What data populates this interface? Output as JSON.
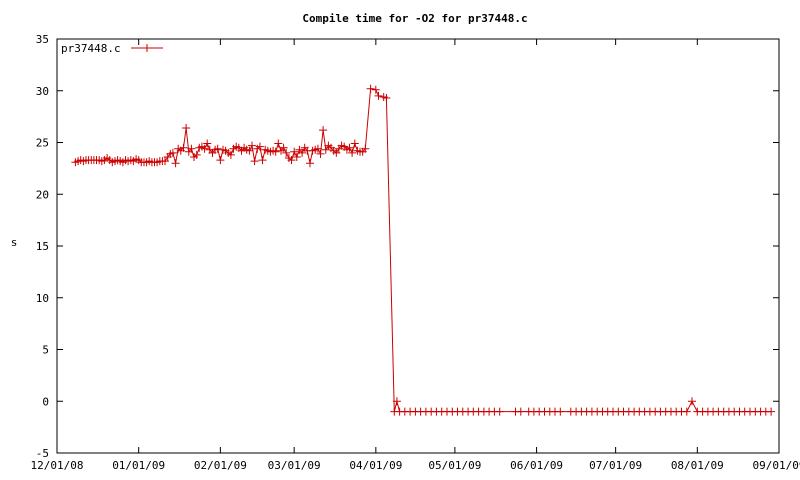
{
  "chart_data": {
    "type": "line",
    "title": "Compile time for -O2 for pr37448.c",
    "xlabel": "",
    "ylabel": "s",
    "ylim": [
      -5,
      35
    ],
    "yticks": [
      -5,
      0,
      5,
      10,
      15,
      20,
      25,
      30,
      35
    ],
    "xlim": [
      "2008-12-01",
      "2009-09-01"
    ],
    "xticks": [
      {
        "date": "2008-12-01",
        "label": "12/01/08"
      },
      {
        "date": "2009-01-01",
        "label": "01/01/09"
      },
      {
        "date": "2009-02-01",
        "label": "02/01/09"
      },
      {
        "date": "2009-03-01",
        "label": "03/01/09"
      },
      {
        "date": "2009-04-01",
        "label": "04/01/09"
      },
      {
        "date": "2009-05-01",
        "label": "05/01/09"
      },
      {
        "date": "2009-06-01",
        "label": "06/01/09"
      },
      {
        "date": "2009-07-01",
        "label": "07/01/09"
      },
      {
        "date": "2009-08-01",
        "label": "08/01/09"
      },
      {
        "date": "2009-09-01",
        "label": "09/01/09"
      }
    ],
    "legend": {
      "position": "top-left"
    },
    "color": "#cc0000",
    "series": [
      {
        "name": "pr37448.c",
        "points": [
          [
            "2008-12-08",
            23.1
          ],
          [
            "2008-12-09",
            23.2
          ],
          [
            "2008-12-10",
            23.3
          ],
          [
            "2008-12-11",
            23.2
          ],
          [
            "2008-12-12",
            23.3
          ],
          [
            "2008-12-13",
            23.3
          ],
          [
            "2008-12-14",
            23.3
          ],
          [
            "2008-12-15",
            23.3
          ],
          [
            "2008-12-16",
            23.3
          ],
          [
            "2008-12-17",
            23.3
          ],
          [
            "2008-12-18",
            23.2
          ],
          [
            "2008-12-19",
            23.3
          ],
          [
            "2008-12-20",
            23.5
          ],
          [
            "2008-12-21",
            23.3
          ],
          [
            "2008-12-22",
            23.1
          ],
          [
            "2008-12-23",
            23.2
          ],
          [
            "2008-12-24",
            23.3
          ],
          [
            "2008-12-25",
            23.2
          ],
          [
            "2008-12-26",
            23.1
          ],
          [
            "2008-12-27",
            23.3
          ],
          [
            "2008-12-28",
            23.2
          ],
          [
            "2008-12-29",
            23.3
          ],
          [
            "2008-12-30",
            23.2
          ],
          [
            "2008-12-31",
            23.4
          ],
          [
            "2009-01-01",
            23.3
          ],
          [
            "2009-01-02",
            23.1
          ],
          [
            "2009-01-03",
            23.1
          ],
          [
            "2009-01-04",
            23.1
          ],
          [
            "2009-01-05",
            23.2
          ],
          [
            "2009-01-06",
            23.1
          ],
          [
            "2009-01-07",
            23.1
          ],
          [
            "2009-01-08",
            23.1
          ],
          [
            "2009-01-09",
            23.2
          ],
          [
            "2009-01-10",
            23.2
          ],
          [
            "2009-01-11",
            23.2
          ],
          [
            "2009-01-12",
            23.6
          ],
          [
            "2009-01-13",
            23.9
          ],
          [
            "2009-01-14",
            24.0
          ],
          [
            "2009-01-15",
            23.0
          ],
          [
            "2009-01-16",
            24.4
          ],
          [
            "2009-01-17",
            24.2
          ],
          [
            "2009-01-18",
            24.5
          ],
          [
            "2009-01-19",
            26.4
          ],
          [
            "2009-01-20",
            24.1
          ],
          [
            "2009-01-21",
            24.4
          ],
          [
            "2009-01-22",
            23.6
          ],
          [
            "2009-01-23",
            23.8
          ],
          [
            "2009-01-24",
            24.5
          ],
          [
            "2009-01-25",
            24.6
          ],
          [
            "2009-01-26",
            24.4
          ],
          [
            "2009-01-27",
            24.9
          ],
          [
            "2009-01-28",
            24.3
          ],
          [
            "2009-01-29",
            24.0
          ],
          [
            "2009-01-30",
            24.3
          ],
          [
            "2009-01-31",
            24.4
          ],
          [
            "2009-02-01",
            23.3
          ],
          [
            "2009-02-02",
            24.3
          ],
          [
            "2009-02-03",
            24.2
          ],
          [
            "2009-02-04",
            24.0
          ],
          [
            "2009-02-05",
            23.8
          ],
          [
            "2009-02-06",
            24.4
          ],
          [
            "2009-02-07",
            24.6
          ],
          [
            "2009-02-08",
            24.5
          ],
          [
            "2009-02-09",
            24.2
          ],
          [
            "2009-02-10",
            24.5
          ],
          [
            "2009-02-11",
            24.3
          ],
          [
            "2009-02-12",
            24.2
          ],
          [
            "2009-02-13",
            24.7
          ],
          [
            "2009-02-14",
            23.2
          ],
          [
            "2009-02-15",
            24.4
          ],
          [
            "2009-02-16",
            24.6
          ],
          [
            "2009-02-17",
            23.3
          ],
          [
            "2009-02-18",
            24.3
          ],
          [
            "2009-02-19",
            24.2
          ],
          [
            "2009-02-20",
            24.1
          ],
          [
            "2009-02-21",
            24.2
          ],
          [
            "2009-02-22",
            24.1
          ],
          [
            "2009-02-23",
            24.9
          ],
          [
            "2009-02-24",
            24.2
          ],
          [
            "2009-02-25",
            24.5
          ],
          [
            "2009-02-26",
            24.0
          ],
          [
            "2009-02-27",
            23.5
          ],
          [
            "2009-02-28",
            23.3
          ],
          [
            "2009-03-01",
            24.1
          ],
          [
            "2009-03-02",
            23.6
          ],
          [
            "2009-03-03",
            24.3
          ],
          [
            "2009-03-04",
            24.0
          ],
          [
            "2009-03-05",
            24.5
          ],
          [
            "2009-03-06",
            24.2
          ],
          [
            "2009-03-07",
            23.0
          ],
          [
            "2009-03-08",
            24.2
          ],
          [
            "2009-03-09",
            24.3
          ],
          [
            "2009-03-10",
            24.4
          ],
          [
            "2009-03-11",
            23.9
          ],
          [
            "2009-03-12",
            26.2
          ],
          [
            "2009-03-13",
            24.3
          ],
          [
            "2009-03-14",
            24.7
          ],
          [
            "2009-03-15",
            24.5
          ],
          [
            "2009-03-16",
            24.2
          ],
          [
            "2009-03-17",
            24.0
          ],
          [
            "2009-03-18",
            24.4
          ],
          [
            "2009-03-19",
            24.7
          ],
          [
            "2009-03-20",
            24.6
          ],
          [
            "2009-03-21",
            24.3
          ],
          [
            "2009-03-22",
            24.5
          ],
          [
            "2009-03-23",
            24.0
          ],
          [
            "2009-03-24",
            24.9
          ],
          [
            "2009-03-25",
            24.2
          ],
          [
            "2009-03-26",
            24.1
          ],
          [
            "2009-03-27",
            24.1
          ],
          [
            "2009-03-28",
            24.4
          ],
          [
            "2009-03-30",
            30.2
          ],
          [
            "2009-04-01",
            30.1
          ],
          [
            "2009-04-02",
            29.5
          ],
          [
            "2009-04-04",
            29.4
          ],
          [
            "2009-04-05",
            29.3
          ],
          [
            "2009-04-08",
            -1.0
          ],
          [
            "2009-04-09",
            0.0
          ],
          [
            "2009-04-10",
            -1.0
          ],
          [
            "2009-04-12",
            -1.0
          ],
          [
            "2009-04-14",
            -1.0
          ],
          [
            "2009-04-16",
            -1.0
          ],
          [
            "2009-04-18",
            -1.0
          ],
          [
            "2009-04-20",
            -1.0
          ],
          [
            "2009-04-22",
            -1.0
          ],
          [
            "2009-04-24",
            -1.0
          ],
          [
            "2009-04-26",
            -1.0
          ],
          [
            "2009-04-28",
            -1.0
          ],
          [
            "2009-04-30",
            -1.0
          ],
          [
            "2009-05-02",
            -1.0
          ],
          [
            "2009-05-04",
            -1.0
          ],
          [
            "2009-05-06",
            -1.0
          ],
          [
            "2009-05-08",
            -1.0
          ],
          [
            "2009-05-10",
            -1.0
          ],
          [
            "2009-05-12",
            -1.0
          ],
          [
            "2009-05-14",
            -1.0
          ],
          [
            "2009-05-16",
            -1.0
          ],
          [
            "2009-05-18",
            -1.0
          ],
          [
            "2009-05-24",
            -1.0
          ],
          [
            "2009-05-26",
            -1.0
          ],
          [
            "2009-05-29",
            -1.0
          ],
          [
            "2009-05-31",
            -1.0
          ],
          [
            "2009-06-02",
            -1.0
          ],
          [
            "2009-06-04",
            -1.0
          ],
          [
            "2009-06-06",
            -1.0
          ],
          [
            "2009-06-08",
            -1.0
          ],
          [
            "2009-06-10",
            -1.0
          ],
          [
            "2009-06-14",
            -1.0
          ],
          [
            "2009-06-16",
            -1.0
          ],
          [
            "2009-06-18",
            -1.0
          ],
          [
            "2009-06-20",
            -1.0
          ],
          [
            "2009-06-22",
            -1.0
          ],
          [
            "2009-06-24",
            -1.0
          ],
          [
            "2009-06-26",
            -1.0
          ],
          [
            "2009-06-28",
            -1.0
          ],
          [
            "2009-06-30",
            -1.0
          ],
          [
            "2009-07-02",
            -1.0
          ],
          [
            "2009-07-04",
            -1.0
          ],
          [
            "2009-07-06",
            -1.0
          ],
          [
            "2009-07-08",
            -1.0
          ],
          [
            "2009-07-10",
            -1.0
          ],
          [
            "2009-07-12",
            -1.0
          ],
          [
            "2009-07-14",
            -1.0
          ],
          [
            "2009-07-16",
            -1.0
          ],
          [
            "2009-07-18",
            -1.0
          ],
          [
            "2009-07-20",
            -1.0
          ],
          [
            "2009-07-22",
            -1.0
          ],
          [
            "2009-07-24",
            -1.0
          ],
          [
            "2009-07-26",
            -1.0
          ],
          [
            "2009-07-28",
            -1.0
          ],
          [
            "2009-07-30",
            0.0
          ],
          [
            "2009-08-01",
            -1.0
          ],
          [
            "2009-08-03",
            -1.0
          ],
          [
            "2009-08-05",
            -1.0
          ],
          [
            "2009-08-07",
            -1.0
          ],
          [
            "2009-08-09",
            -1.0
          ],
          [
            "2009-08-11",
            -1.0
          ],
          [
            "2009-08-13",
            -1.0
          ],
          [
            "2009-08-15",
            -1.0
          ],
          [
            "2009-08-17",
            -1.0
          ],
          [
            "2009-08-19",
            -1.0
          ],
          [
            "2009-08-21",
            -1.0
          ],
          [
            "2009-08-23",
            -1.0
          ],
          [
            "2009-08-25",
            -1.0
          ],
          [
            "2009-08-27",
            -1.0
          ],
          [
            "2009-08-29",
            -1.0
          ]
        ]
      }
    ]
  }
}
